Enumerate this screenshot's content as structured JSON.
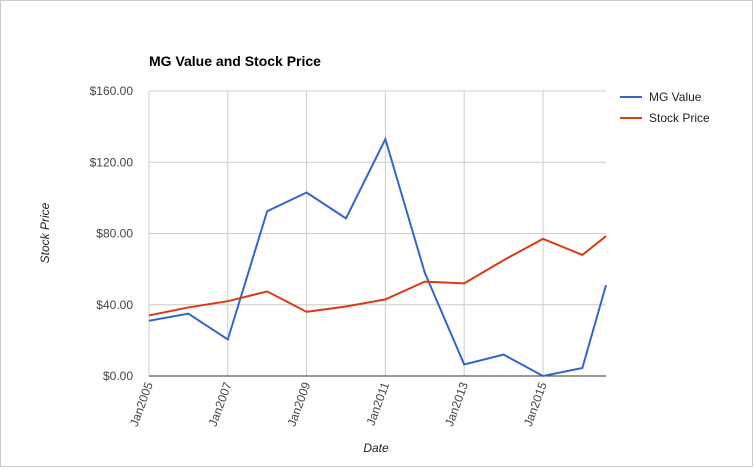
{
  "chart_data": {
    "type": "line",
    "title": "MG Value and Stock Price",
    "x_label": "Date",
    "y_label": "Stock Price",
    "x": [
      2005,
      2006,
      2007,
      2008,
      2009,
      2010,
      2011,
      2012,
      2013,
      2014,
      2015,
      2016,
      2016.6
    ],
    "series": [
      {
        "name": "MG Value",
        "color": "#3366cc",
        "values": [
          31,
          35,
          20.5,
          92.5,
          103,
          88.5,
          133,
          58,
          6.5,
          12,
          0,
          4.5,
          51
        ]
      },
      {
        "name": "Stock Price",
        "color": "#dc3912",
        "values": [
          34,
          38.5,
          42,
          47.5,
          36,
          39,
          43,
          53,
          52,
          65,
          77,
          68,
          78.5
        ]
      }
    ],
    "xlim": [
      2005,
      2016.6
    ],
    "xticks": [
      {
        "value": 2005,
        "label": "Jan2005"
      },
      {
        "value": 2007,
        "label": "Jan2007"
      },
      {
        "value": 2009,
        "label": "Jan2009"
      },
      {
        "value": 2011,
        "label": "Jan2011"
      },
      {
        "value": 2013,
        "label": "Jan2013"
      },
      {
        "value": 2015,
        "label": "Jan2015"
      }
    ],
    "ylim": [
      0,
      160
    ],
    "yticks": [
      {
        "value": 0,
        "label": "$0.00"
      },
      {
        "value": 40,
        "label": "$40.00"
      },
      {
        "value": 80,
        "label": "$80.00"
      },
      {
        "value": 120,
        "label": "$120.00"
      },
      {
        "value": 160,
        "label": "$160.00"
      }
    ],
    "grid": true,
    "legend": "right"
  }
}
